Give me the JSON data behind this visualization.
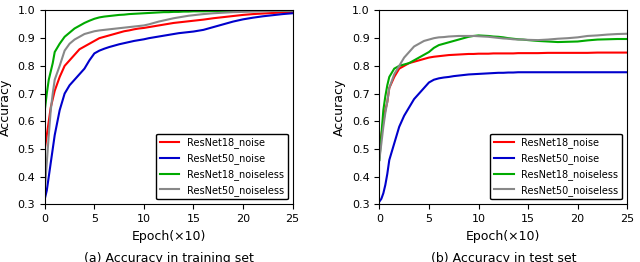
{
  "title_a": "(a) Accuracy in training set",
  "title_b": "(b) Accuracy in test set",
  "xlabel": "Epoch(×10)",
  "ylabel": "Accuracy",
  "xlim": [
    0,
    25
  ],
  "ylim_a": [
    0.3,
    1.0
  ],
  "ylim_b": [
    0.3,
    1.0
  ],
  "yticks": [
    0.3,
    0.4,
    0.5,
    0.6,
    0.7,
    0.8,
    0.9,
    1.0
  ],
  "xticks": [
    0,
    5,
    10,
    15,
    20,
    25
  ],
  "colors": {
    "resnet18_noise": "#ff0000",
    "resnet50_noise": "#0000cc",
    "resnet18_noiseless": "#00aa00",
    "resnet50_noiseless": "#888888"
  },
  "legend_labels": [
    "ResNet18_noise",
    "ResNet50_noise",
    "ResNet18_noiseless",
    "ResNet50_noiseless"
  ],
  "train": {
    "x": [
      0,
      0.2,
      0.4,
      0.6,
      0.8,
      1.0,
      1.5,
      2.0,
      2.5,
      3.0,
      3.5,
      4.0,
      4.5,
      5.0,
      5.5,
      6.0,
      6.5,
      7.0,
      7.5,
      8.0,
      8.5,
      9.0,
      9.5,
      10.0,
      10.5,
      11.0,
      11.5,
      12.0,
      12.5,
      13.0,
      13.5,
      14.0,
      14.5,
      15.0,
      16.0,
      17.0,
      18.0,
      19.0,
      20.0,
      21.0,
      22.0,
      23.0,
      24.0,
      25.0
    ],
    "resnet18_noise": [
      0.5,
      0.55,
      0.6,
      0.65,
      0.68,
      0.71,
      0.76,
      0.8,
      0.82,
      0.84,
      0.86,
      0.87,
      0.88,
      0.89,
      0.9,
      0.905,
      0.91,
      0.915,
      0.92,
      0.925,
      0.928,
      0.932,
      0.935,
      0.937,
      0.94,
      0.943,
      0.946,
      0.949,
      0.952,
      0.955,
      0.957,
      0.959,
      0.961,
      0.963,
      0.967,
      0.972,
      0.976,
      0.98,
      0.984,
      0.987,
      0.989,
      0.991,
      0.993,
      0.994
    ],
    "resnet50_noise": [
      0.32,
      0.35,
      0.4,
      0.45,
      0.5,
      0.55,
      0.64,
      0.7,
      0.73,
      0.75,
      0.77,
      0.79,
      0.82,
      0.845,
      0.855,
      0.862,
      0.868,
      0.873,
      0.878,
      0.882,
      0.886,
      0.89,
      0.893,
      0.896,
      0.9,
      0.903,
      0.906,
      0.909,
      0.912,
      0.915,
      0.918,
      0.92,
      0.922,
      0.924,
      0.93,
      0.94,
      0.95,
      0.96,
      0.968,
      0.974,
      0.979,
      0.983,
      0.987,
      0.99
    ],
    "resnet18_noiseless": [
      0.64,
      0.7,
      0.75,
      0.78,
      0.81,
      0.85,
      0.88,
      0.905,
      0.92,
      0.935,
      0.945,
      0.955,
      0.963,
      0.97,
      0.975,
      0.978,
      0.98,
      0.982,
      0.984,
      0.985,
      0.987,
      0.988,
      0.989,
      0.99,
      0.991,
      0.992,
      0.993,
      0.994,
      0.994,
      0.995,
      0.995,
      0.996,
      0.996,
      0.997,
      0.997,
      0.998,
      0.998,
      0.998,
      0.999,
      0.999,
      0.999,
      0.999,
      0.999,
      1.0
    ],
    "resnet50_noiseless": [
      0.35,
      0.45,
      0.55,
      0.64,
      0.7,
      0.75,
      0.8,
      0.855,
      0.88,
      0.895,
      0.905,
      0.915,
      0.92,
      0.925,
      0.928,
      0.93,
      0.932,
      0.934,
      0.936,
      0.938,
      0.94,
      0.942,
      0.944,
      0.946,
      0.95,
      0.955,
      0.96,
      0.964,
      0.968,
      0.972,
      0.975,
      0.978,
      0.981,
      0.983,
      0.987,
      0.99,
      0.992,
      0.994,
      0.995,
      0.996,
      0.997,
      0.998,
      0.999,
      0.999
    ]
  },
  "test": {
    "x": [
      0,
      0.2,
      0.4,
      0.6,
      0.8,
      1.0,
      1.5,
      2.0,
      2.5,
      3.0,
      3.5,
      4.0,
      4.5,
      5.0,
      5.5,
      6.0,
      6.5,
      7.0,
      7.5,
      8.0,
      8.5,
      9.0,
      9.5,
      10.0,
      10.5,
      11.0,
      11.5,
      12.0,
      12.5,
      13.0,
      13.5,
      14.0,
      14.5,
      15.0,
      16.0,
      17.0,
      18.0,
      19.0,
      20.0,
      21.0,
      22.0,
      23.0,
      24.0,
      25.0
    ],
    "resnet18_noise": [
      0.49,
      0.55,
      0.6,
      0.64,
      0.67,
      0.72,
      0.76,
      0.79,
      0.8,
      0.81,
      0.815,
      0.82,
      0.825,
      0.83,
      0.833,
      0.835,
      0.837,
      0.839,
      0.84,
      0.841,
      0.842,
      0.843,
      0.843,
      0.844,
      0.844,
      0.844,
      0.845,
      0.845,
      0.845,
      0.845,
      0.845,
      0.846,
      0.846,
      0.846,
      0.846,
      0.847,
      0.847,
      0.847,
      0.847,
      0.847,
      0.848,
      0.848,
      0.848,
      0.848
    ],
    "resnet50_noise": [
      0.31,
      0.32,
      0.34,
      0.37,
      0.41,
      0.46,
      0.52,
      0.58,
      0.62,
      0.65,
      0.68,
      0.7,
      0.72,
      0.74,
      0.75,
      0.755,
      0.758,
      0.76,
      0.763,
      0.765,
      0.767,
      0.769,
      0.77,
      0.771,
      0.772,
      0.773,
      0.774,
      0.775,
      0.775,
      0.776,
      0.776,
      0.777,
      0.777,
      0.777,
      0.777,
      0.777,
      0.777,
      0.777,
      0.777,
      0.777,
      0.777,
      0.777,
      0.777,
      0.777
    ],
    "resnet18_noiseless": [
      0.46,
      0.55,
      0.64,
      0.69,
      0.73,
      0.76,
      0.79,
      0.8,
      0.805,
      0.81,
      0.82,
      0.83,
      0.84,
      0.85,
      0.865,
      0.875,
      0.88,
      0.885,
      0.89,
      0.895,
      0.9,
      0.905,
      0.908,
      0.91,
      0.909,
      0.908,
      0.906,
      0.905,
      0.903,
      0.9,
      0.898,
      0.896,
      0.895,
      0.893,
      0.89,
      0.888,
      0.886,
      0.887,
      0.888,
      0.892,
      0.895,
      0.896,
      0.897,
      0.897
    ],
    "resnet50_noiseless": [
      0.46,
      0.52,
      0.58,
      0.63,
      0.67,
      0.72,
      0.77,
      0.8,
      0.83,
      0.85,
      0.87,
      0.88,
      0.89,
      0.895,
      0.9,
      0.903,
      0.904,
      0.906,
      0.907,
      0.908,
      0.908,
      0.908,
      0.908,
      0.907,
      0.906,
      0.905,
      0.903,
      0.901,
      0.899,
      0.898,
      0.896,
      0.895,
      0.895,
      0.894,
      0.893,
      0.895,
      0.898,
      0.9,
      0.903,
      0.908,
      0.91,
      0.913,
      0.915,
      0.916
    ]
  },
  "linewidth": 1.5,
  "legend_fontsize": 7,
  "axis_fontsize": 9,
  "tick_fontsize": 8,
  "caption_fontsize": 9
}
